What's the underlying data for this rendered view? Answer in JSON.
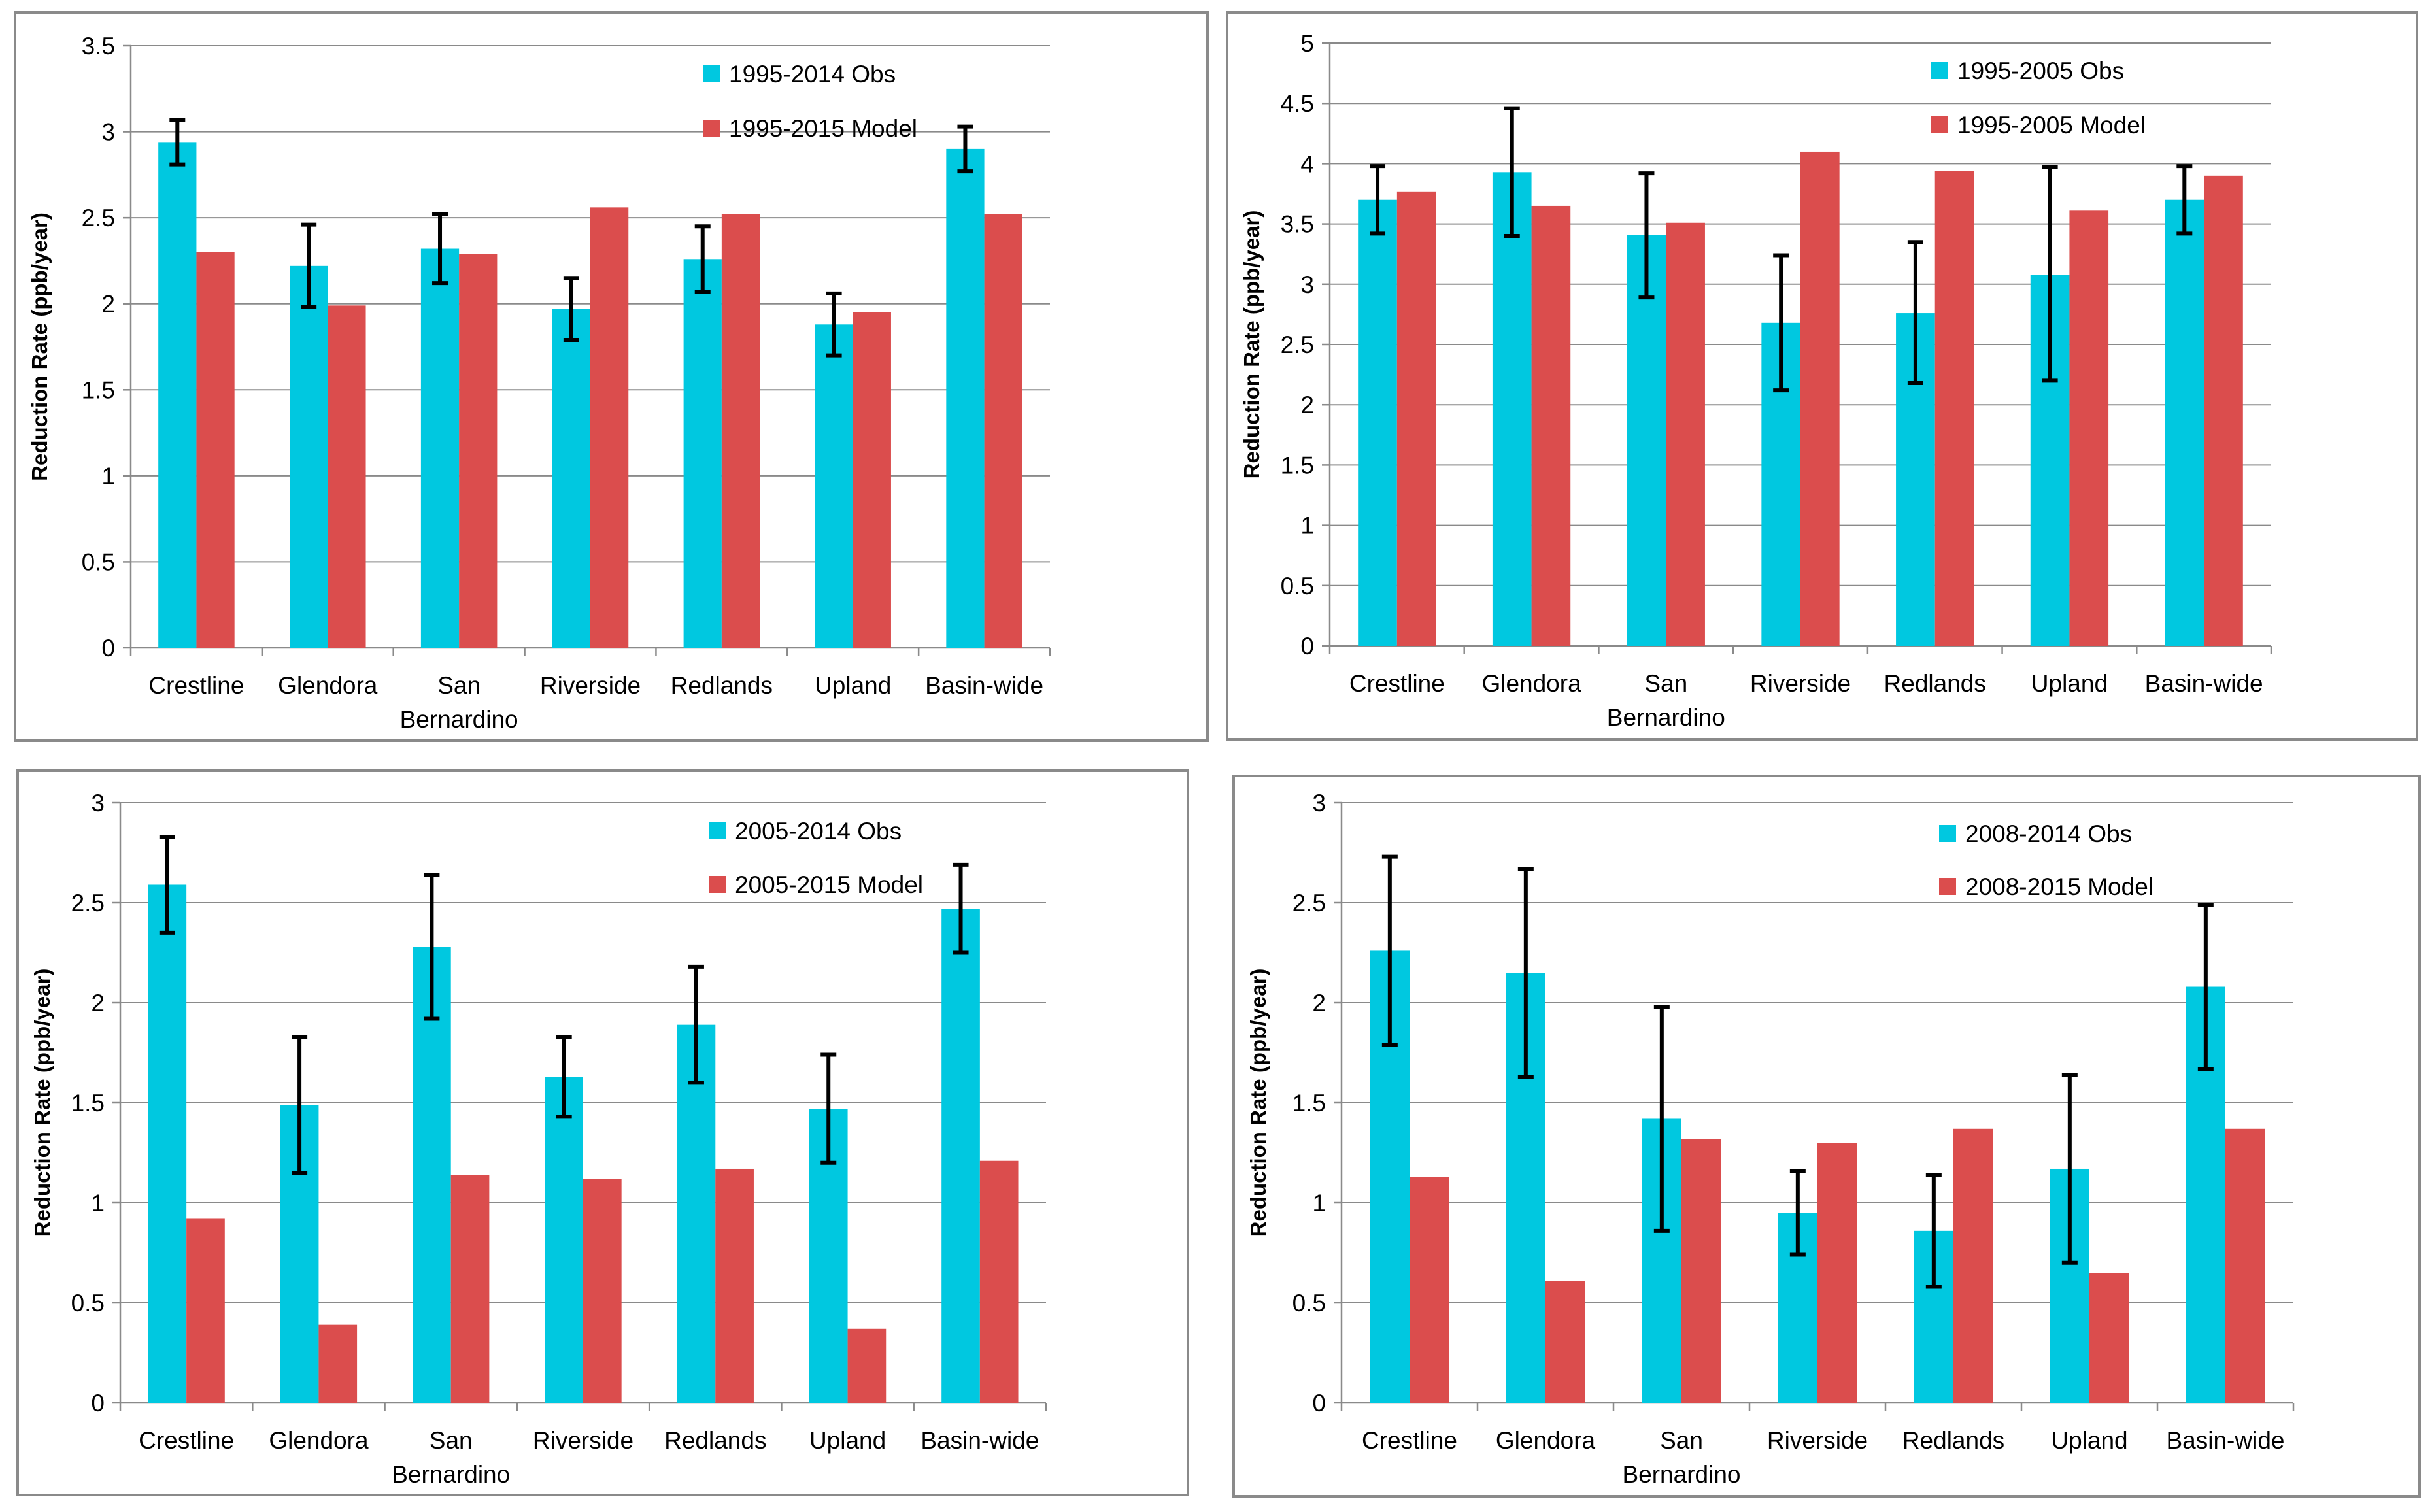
{
  "colors": {
    "obs": "#00c8e0",
    "model": "#db4d4d"
  },
  "chart_data": [
    {
      "type": "bar",
      "ylabel": "Reduction Rate (ppb/year)",
      "categories": [
        [
          "Crestline"
        ],
        [
          "Glendora"
        ],
        [
          "San",
          "Bernardino"
        ],
        [
          "Riverside"
        ],
        [
          "Redlands"
        ],
        [
          "Upland"
        ],
        [
          "Basin-wide"
        ]
      ],
      "ylim": [
        0,
        3.5
      ],
      "ytick_labels": [
        "0",
        "0.5",
        "1",
        "1.5",
        "2",
        "2.5",
        "3",
        "3.5"
      ],
      "legend_position": "top-right",
      "series": [
        {
          "name": "1995-2014 Obs",
          "values": [
            2.94,
            2.22,
            2.32,
            1.97,
            2.26,
            1.88,
            2.9
          ],
          "error_low": [
            2.81,
            1.98,
            2.12,
            1.79,
            2.07,
            1.7,
            2.77
          ],
          "error_high": [
            3.07,
            2.46,
            2.52,
            2.15,
            2.45,
            2.06,
            3.03
          ]
        },
        {
          "name": "1995-2015 Model",
          "values": [
            2.3,
            1.99,
            2.29,
            2.56,
            2.52,
            1.95,
            2.52
          ]
        }
      ]
    },
    {
      "type": "bar",
      "ylabel": "Reduction Rate (ppb/year)",
      "categories": [
        [
          "Crestline"
        ],
        [
          "Glendora"
        ],
        [
          "San",
          "Bernardino"
        ],
        [
          "Riverside"
        ],
        [
          "Redlands"
        ],
        [
          "Upland"
        ],
        [
          "Basin-wide"
        ]
      ],
      "ylim": [
        0,
        5
      ],
      "ytick_labels": [
        "0",
        "0.5",
        "1",
        "1.5",
        "2",
        "2.5",
        "3",
        "3.5",
        "4",
        "4.5",
        "5"
      ],
      "legend_position": "top-right",
      "series": [
        {
          "name": "1995-2005 Obs",
          "values": [
            3.7,
            3.93,
            3.41,
            2.68,
            2.76,
            3.08,
            3.7
          ],
          "error_low": [
            3.42,
            3.4,
            2.89,
            2.12,
            2.18,
            2.2,
            3.42
          ],
          "error_high": [
            3.98,
            4.46,
            3.92,
            3.24,
            3.35,
            3.97,
            3.98
          ]
        },
        {
          "name": "1995-2005 Model",
          "values": [
            3.77,
            3.65,
            3.51,
            4.1,
            3.94,
            3.61,
            3.9
          ]
        }
      ]
    },
    {
      "type": "bar",
      "ylabel": "Reduction Rate (ppb/year)",
      "categories": [
        [
          "Crestline"
        ],
        [
          "Glendora"
        ],
        [
          "San",
          "Bernardino"
        ],
        [
          "Riverside"
        ],
        [
          "Redlands"
        ],
        [
          "Upland"
        ],
        [
          "Basin-wide"
        ]
      ],
      "ylim": [
        0,
        3
      ],
      "ytick_labels": [
        "0",
        "0.5",
        "1",
        "1.5",
        "2",
        "2.5",
        "3"
      ],
      "legend_position": "top-right",
      "series": [
        {
          "name": "2005-2014 Obs",
          "values": [
            2.59,
            1.49,
            2.28,
            1.63,
            1.89,
            1.47,
            2.47
          ],
          "error_low": [
            2.35,
            1.15,
            1.92,
            1.43,
            1.6,
            1.2,
            2.25
          ],
          "error_high": [
            2.83,
            1.83,
            2.64,
            1.83,
            2.18,
            1.74,
            2.69
          ]
        },
        {
          "name": "2005-2015 Model",
          "values": [
            0.92,
            0.39,
            1.14,
            1.12,
            1.17,
            0.37,
            1.21
          ]
        }
      ]
    },
    {
      "type": "bar",
      "ylabel": "Reduction Rate (ppb/year)",
      "categories": [
        [
          "Crestline"
        ],
        [
          "Glendora"
        ],
        [
          "San",
          "Bernardino"
        ],
        [
          "Riverside"
        ],
        [
          "Redlands"
        ],
        [
          "Upland"
        ],
        [
          "Basin-wide"
        ]
      ],
      "ylim": [
        0,
        3
      ],
      "ytick_labels": [
        "0",
        "0.5",
        "1",
        "1.5",
        "2",
        "2.5",
        "3"
      ],
      "legend_position": "top-right",
      "series": [
        {
          "name": "2008-2014 Obs",
          "values": [
            2.26,
            2.15,
            1.42,
            0.95,
            0.86,
            1.17,
            2.08
          ],
          "error_low": [
            1.79,
            1.63,
            0.86,
            0.74,
            0.58,
            0.7,
            1.67
          ],
          "error_high": [
            2.73,
            2.67,
            1.98,
            1.16,
            1.14,
            1.64,
            2.49
          ]
        },
        {
          "name": "2008-2015 Model",
          "values": [
            1.13,
            0.61,
            1.32,
            1.3,
            1.37,
            0.65,
            1.37
          ]
        }
      ]
    }
  ]
}
